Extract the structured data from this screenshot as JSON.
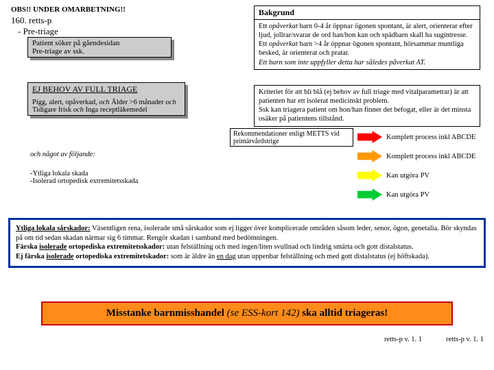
{
  "obs": "OBS!! UNDER OMARBETNING!!",
  "h1": "160. retts-p",
  "h2": "- Pre-triage",
  "patient": "Patient söker på gåendesidan\nPre-triage av ssk.",
  "ejbehov_title": "EJ BEHOV AV FULL TRIAGE",
  "ejbehov_body": "Pigg, alert, opåverkad, <i>och</i> Ålder >6 månader <i>och</i> Tidigare frisk <i>och</i> Inga receptläkemedel",
  "och_nagot": "och något av följande:",
  "left_bullets": "-Ytliga lokala skada\n-Isolerad ortopedisk extremitetsskada",
  "bakgrund_h": "Bakgrund",
  "bakgrund_b": "Ett <i>opåverkat</i> barn 0-4 år öppnar ögonen spontant, är alert, orienterar efter ljud, jollrar/svarar de ord han/hon kan och spädbarn skall ha sugintresse.\nEtt <i>opåverkat</i> barn >4 år öppnar ögonen spontant, hörsammar muntliga besked, är orienterat och pratar.\n<i>Ett barn som inte uppfyller detta har således påverkat AT.</i>",
  "kriterie": "Kriteriet för att bli blå (ej behov av full triage med vitalparametrar) är att patienten har ett isolerat medicinskt problem.\nSsk kan triagera patient om hon/han finner det befogat, eller är det minsta osäker på patientens tillstånd.",
  "legend_box": "Rekommendationer enligt METTS\nvid primärvårdstrige",
  "legend_rows": [
    {
      "color": "#ff0000",
      "text": "Komplett process inkl ABCDE"
    },
    {
      "color": "#ff9900",
      "text": "Komplett process inkl ABCDE"
    },
    {
      "color": "#ffff00",
      "text": "Kan utgöra PV"
    },
    {
      "color": "#00cc33",
      "text": "Kan utgöra PV"
    }
  ],
  "notes": "<b><u>Ytliga lokala sårskador:</u></b> Väsentligen rena, isolerade små sårskador som ej ligger över komplicerade områden såsom leder, senor, ögon, genetalia. Bör skyndas på om tid sedan skadan närmar sig 6 timmar. Rengör skadan i samband med bedömningen.<br><b>Färska <u>isolerade</u> ortopediska extremitetsskador:</b> utan felställning och med ingen/liten svullnad och lindrig smärta och gott distalstatus.<br><b>Ej färska <u>isolerade</u> ortopediska extremitetskador:</b> som är äldre än <u>en dag</u> utan uppenbar felställning och med gott distalstatus (ej höftskada).",
  "redbar": "Misstanke barnmisshandel <span class='ital'>(se ESS-kort 142)</span> ska alltid triageras!",
  "footer1": "retts-p v. 1. 1",
  "footer2": "retts-p v. 1. 1"
}
